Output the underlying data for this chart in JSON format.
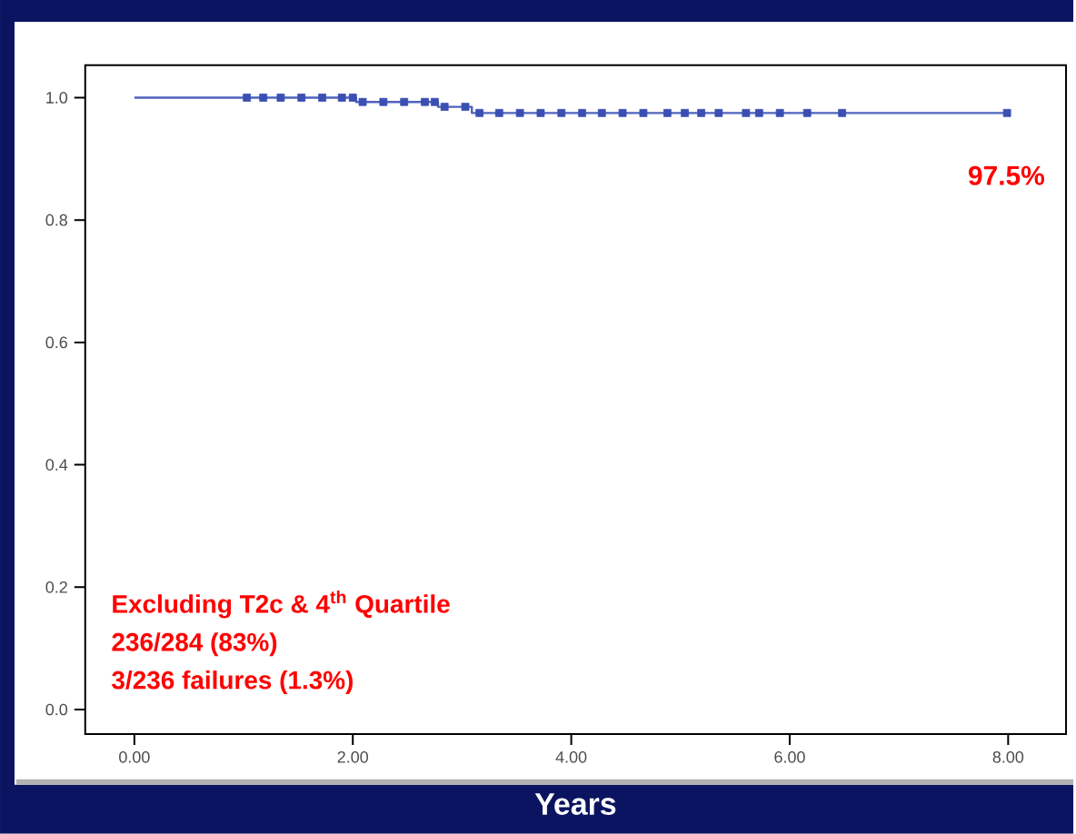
{
  "chart_data": {
    "type": "step",
    "xlabel": "Years",
    "xlim": [
      -0.45,
      8.53
    ],
    "ylim": [
      -0.04,
      1.053
    ],
    "xticks": [
      {
        "value": 0,
        "label": "0.00"
      },
      {
        "value": 2,
        "label": "2.00"
      },
      {
        "value": 4,
        "label": "4.00"
      },
      {
        "value": 6,
        "label": "6.00"
      },
      {
        "value": 8,
        "label": "8.00"
      }
    ],
    "yticks": [
      {
        "value": 0,
        "label": "0.0"
      },
      {
        "value": 0.2,
        "label": "0.2"
      },
      {
        "value": 0.4,
        "label": "0.4"
      },
      {
        "value": 0.6,
        "label": "0.6"
      },
      {
        "value": 0.8,
        "label": "0.8"
      },
      {
        "value": 1.0,
        "label": "1.0"
      }
    ],
    "series": [
      {
        "color": "#4f63c0",
        "x": [
          0,
          2.03,
          2.78,
          3.09,
          7.99
        ],
        "values": [
          1.0,
          0.993,
          0.985,
          0.975,
          0.975
        ]
      },
      {
        "type": "scatter",
        "color": "#3b4fb2",
        "x": [
          1.03,
          1.18,
          1.34,
          1.53,
          1.72,
          1.9,
          2.0,
          2.09,
          2.28,
          2.47,
          2.66,
          2.75,
          2.84,
          3.03,
          3.16,
          3.34,
          3.53,
          3.72,
          3.91,
          4.1,
          4.28,
          4.47,
          4.66,
          4.88,
          5.04,
          5.19,
          5.35,
          5.6,
          5.72,
          5.91,
          6.16,
          6.48,
          7.99
        ],
        "values": [
          1.0,
          1.0,
          1.0,
          1.0,
          1.0,
          1.0,
          1.0,
          0.993,
          0.993,
          0.993,
          0.993,
          0.993,
          0.985,
          0.985,
          0.975,
          0.975,
          0.975,
          0.975,
          0.975,
          0.975,
          0.975,
          0.975,
          0.975,
          0.975,
          0.975,
          0.975,
          0.975,
          0.975,
          0.975,
          0.975,
          0.975,
          0.975,
          0.975
        ]
      }
    ],
    "annotations": [
      "97.5%",
      "Excluding T2c & 4$^{th}$ Quartile",
      "236/284 (83%)",
      "3/236 failures (1.3%)"
    ]
  }
}
